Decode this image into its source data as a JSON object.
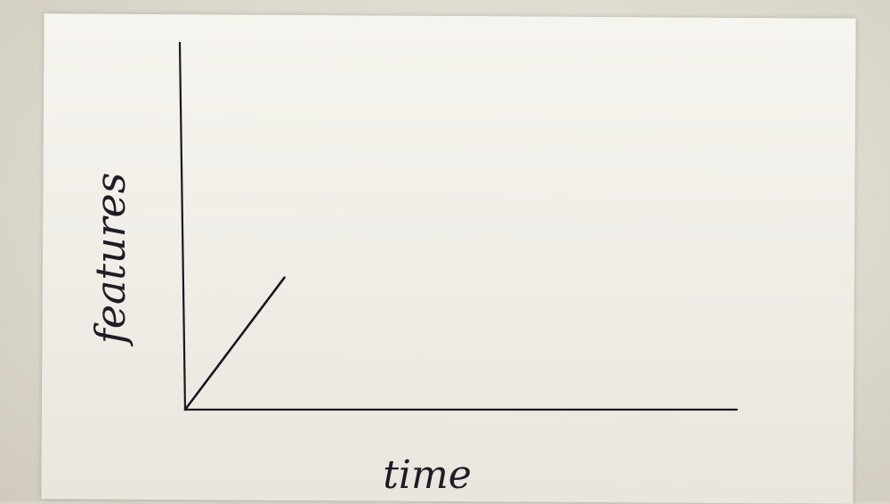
{
  "chart_data": {
    "type": "line",
    "title": "",
    "xlabel": "time",
    "ylabel": "features",
    "grid": false,
    "legend": "none",
    "xlim": [
      0,
      1
    ],
    "ylim": [
      0,
      1
    ],
    "series": [
      {
        "x": [
          0,
          0.18
        ],
        "y": [
          0,
          0.36
        ]
      }
    ]
  },
  "colors": {
    "ink": "#1c1620",
    "paper": "#f3f1ea"
  }
}
